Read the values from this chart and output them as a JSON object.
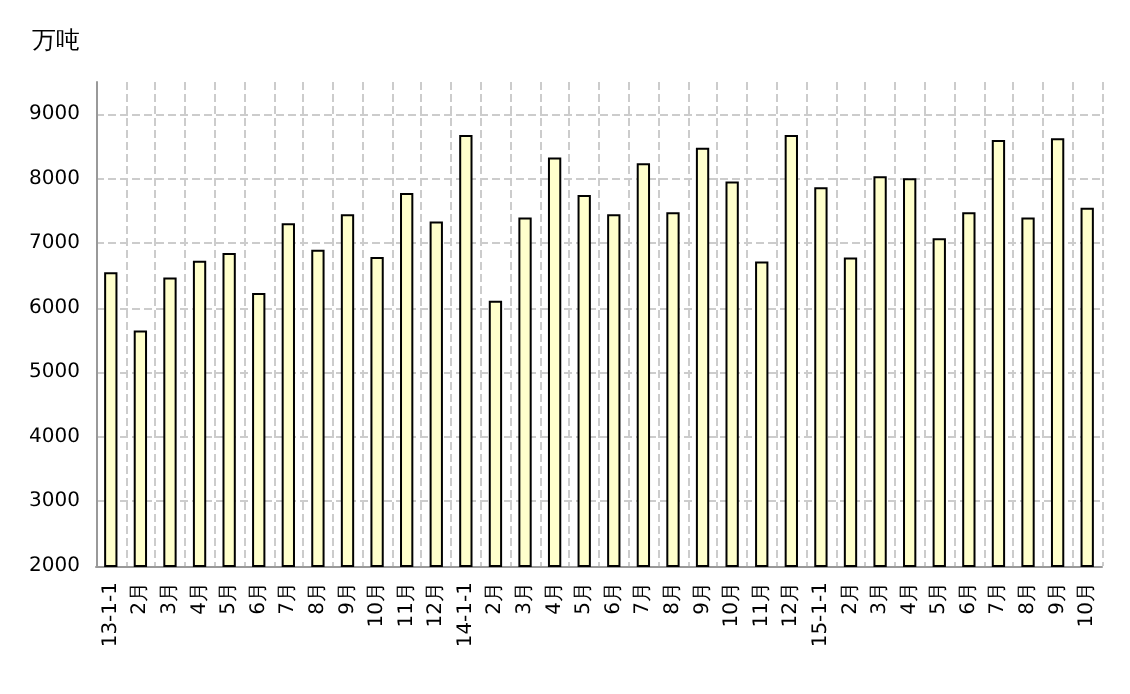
{
  "chart_data": {
    "type": "bar",
    "ylabel": "万吨",
    "categories": [
      "13-1-1",
      "2月",
      "3月",
      "4月",
      "5月",
      "6月",
      "7月",
      "8月",
      "9月",
      "10月",
      "11月",
      "12月",
      "14-1-1",
      "2月",
      "3月",
      "4月",
      "5月",
      "6月",
      "7月",
      "8月",
      "9月",
      "10月",
      "11月",
      "12月",
      "15-1-1",
      "2月",
      "3月",
      "4月",
      "5月",
      "6月",
      "7月",
      "8月",
      "9月",
      "10月"
    ],
    "values": [
      6550,
      5650,
      6470,
      6730,
      6850,
      6230,
      7310,
      6900,
      7450,
      6790,
      7780,
      7340,
      8680,
      6110,
      7400,
      8330,
      7750,
      7450,
      8240,
      7480,
      8480,
      7960,
      6720,
      8680,
      7870,
      6780,
      8040,
      8010,
      7080,
      7480,
      8600,
      7400,
      8630,
      7550
    ],
    "color": "#ffffcc",
    "ylim": [
      2000,
      9500
    ],
    "yticks": [
      2000,
      3000,
      4000,
      5000,
      6000,
      7000,
      8000,
      9000
    ],
    "grid": true
  }
}
